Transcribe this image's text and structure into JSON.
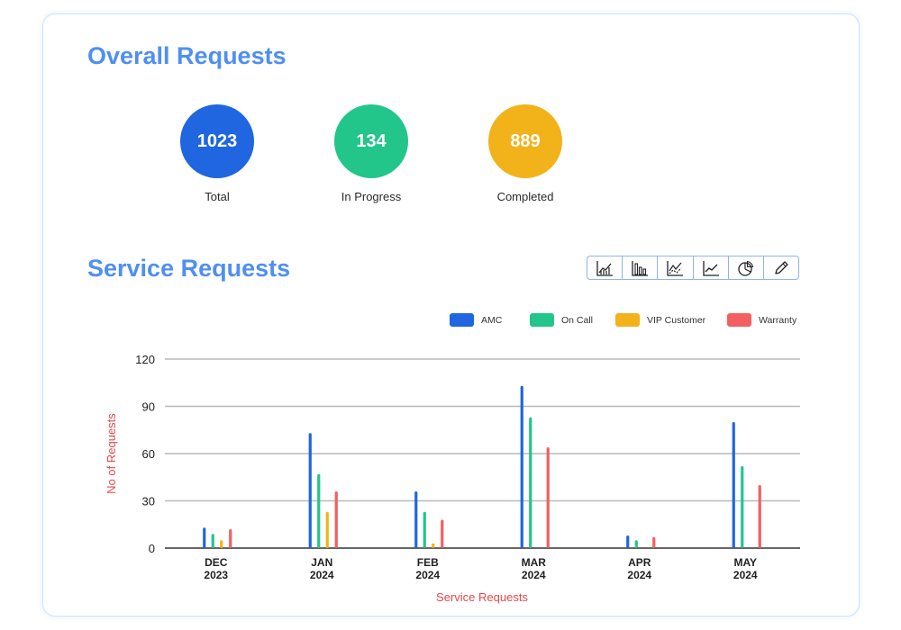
{
  "overall": {
    "title": "Overall Requests",
    "stats": [
      {
        "value": "1023",
        "label": "Total",
        "color": "#1f66e0"
      },
      {
        "value": "134",
        "label": "In Progress",
        "color": "#22c58a"
      },
      {
        "value": "889",
        "label": "Completed",
        "color": "#f2b21a"
      }
    ]
  },
  "service": {
    "title": "Service Requests",
    "toolbar": [
      {
        "icon": "area-chart-icon"
      },
      {
        "icon": "bar-chart-icon"
      },
      {
        "icon": "scatter-chart-icon"
      },
      {
        "icon": "line-chart-icon"
      },
      {
        "icon": "pie-chart-icon"
      },
      {
        "icon": "pencil-icon"
      }
    ]
  },
  "chart_data": {
    "type": "bar",
    "categories": [
      "DEC 2023",
      "JAN 2024",
      "FEB 2024",
      "MAR 2024",
      "APR 2024",
      "MAY 2024"
    ],
    "series": [
      {
        "name": "AMC",
        "color": "#1f66e0",
        "values": [
          13,
          73,
          36,
          103,
          8,
          80
        ]
      },
      {
        "name": "On Call",
        "color": "#22c58a",
        "values": [
          9,
          47,
          23,
          83,
          5,
          52
        ]
      },
      {
        "name": "VIP Customer",
        "color": "#f2b21a",
        "values": [
          5,
          23,
          3,
          0,
          0,
          0
        ]
      },
      {
        "name": "Warranty",
        "color": "#f2605f",
        "values": [
          12,
          36,
          18,
          64,
          7,
          40
        ]
      }
    ],
    "xlabel": "Service Requests",
    "ylabel": "No of Requests",
    "ylim": [
      0,
      120
    ],
    "yticks": [
      0,
      30,
      60,
      90,
      120
    ],
    "grid": true,
    "legend_position": "top-right"
  }
}
